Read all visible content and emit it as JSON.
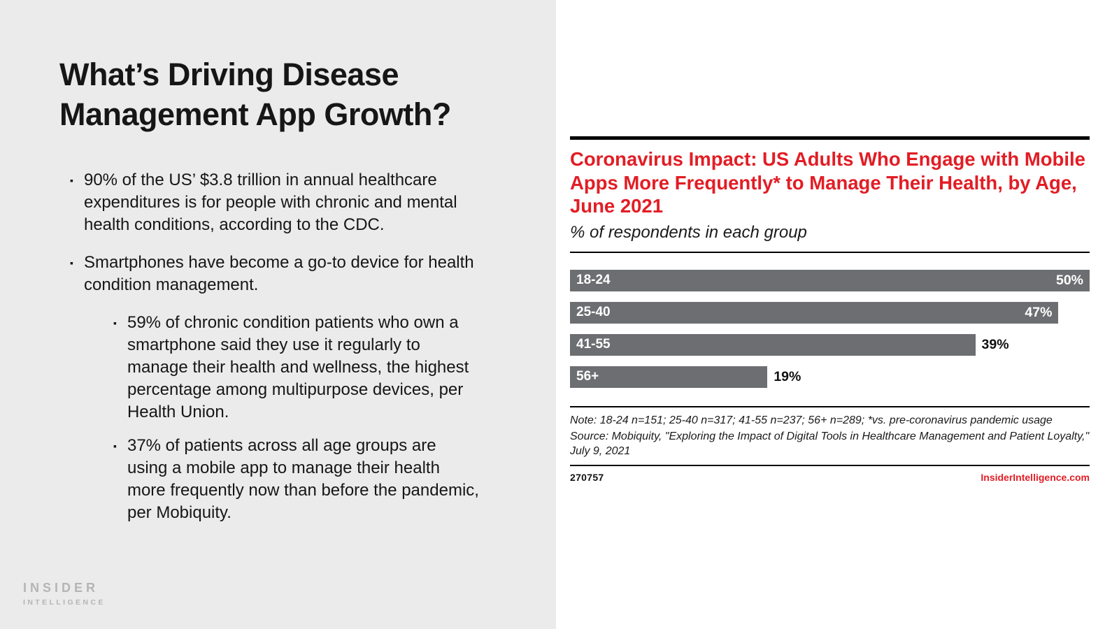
{
  "accent_red": "#e21d25",
  "slide": {
    "title": "What’s Driving Disease Management App Growth?",
    "bullets": [
      {
        "level": 1,
        "text": "90% of the US’ $3.8 trillion in annual healthcare expenditures is for people with chronic and mental health conditions, according to the CDC."
      },
      {
        "level": 1,
        "text": "Smartphones have become a go-to device for health condition management."
      },
      {
        "level": 2,
        "text": "59% of chronic condition patients who own a smartphone said they use it regularly to manage their health and wellness, the highest percentage among multipurpose devices, per Health Union."
      },
      {
        "level": 2,
        "text": "37% of patients across all age groups are using a mobile app to manage their health more frequently now than before the pandemic, per Mobiquity."
      }
    ],
    "logo": {
      "line1": "INSIDER",
      "line2": "INTELLIGENCE"
    }
  },
  "chart": {
    "title": "Coronavirus Impact: US Adults Who Engage with Mobile Apps More Frequently* to Manage Their Health, by Age, June 2021",
    "subtitle": "% of respondents in each group",
    "note": "Note: 18-24 n=151; 25-40 n=317; 41-55 n=237; 56+ n=289; *vs. pre-coronavirus pandemic usage",
    "source": "Source: Mobiquity, \"Exploring the Impact of Digital Tools in Healthcare Management and Patient Loyalty,\" July 9, 2021",
    "footer_id": "270757",
    "footer_site": "InsiderIntelligence.com"
  },
  "chart_data": {
    "type": "bar",
    "orientation": "horizontal",
    "title": "Coronavirus Impact: US Adults Who Engage with Mobile Apps More Frequently* to Manage Their Health, by Age, June 2021",
    "subtitle": "% of respondents in each group",
    "categories": [
      "18-24",
      "25-40",
      "41-55",
      "56+"
    ],
    "values": [
      50,
      47,
      39,
      19
    ],
    "value_labels": [
      "50%",
      "47%",
      "39%",
      "19%"
    ],
    "unit": "%",
    "xlim": [
      0,
      50
    ],
    "axis_max": 50,
    "bar_color": "#6d6e71",
    "grid": false,
    "legend": false
  }
}
